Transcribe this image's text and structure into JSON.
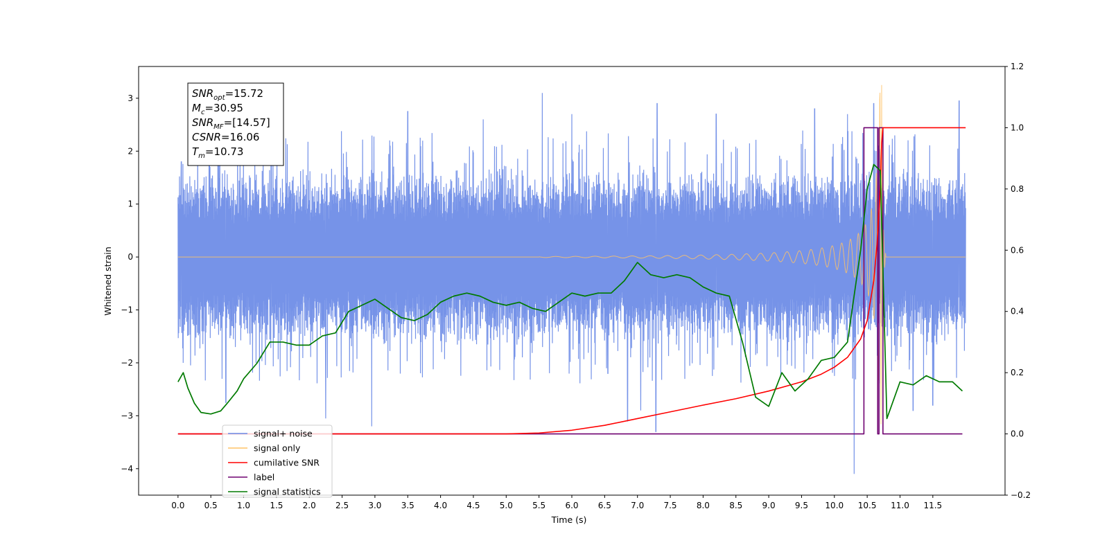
{
  "chart_data": {
    "type": "line",
    "xlabel": "Time (s)",
    "ylabel": "Whitened strain",
    "xlim": [
      -0.6,
      12.6
    ],
    "ylim": [
      -4.5,
      3.6
    ],
    "y2lim": [
      -0.2,
      1.2
    ],
    "x_ticks": [
      "0.0",
      "0.5",
      "1.0",
      "1.5",
      "2.0",
      "2.5",
      "3.0",
      "3.5",
      "4.0",
      "4.5",
      "5.0",
      "5.5",
      "6.0",
      "6.5",
      "7.0",
      "7.5",
      "8.0",
      "8.5",
      "9.0",
      "9.5",
      "10.0",
      "10.5",
      "11.0",
      "11.5"
    ],
    "y_ticks": [
      "3",
      "2",
      "1",
      "0",
      "−1",
      "−2",
      "−3",
      "−4"
    ],
    "y2_ticks": [
      "1.2",
      "1.0",
      "0.8",
      "0.6",
      "0.4",
      "0.2",
      "0.0",
      "−0.2"
    ],
    "info_box": [
      {
        "base": "SNR",
        "sub": "opt",
        "rest": "=15.72"
      },
      {
        "base": "M",
        "sub": "c",
        "rest": "=30.95"
      },
      {
        "base": "SNR",
        "sub": "MF",
        "rest": "=[14.57]"
      },
      {
        "base": "CSNR",
        "sub": "",
        "rest": "=16.06"
      },
      {
        "base": "T",
        "sub": "m",
        "rest": "=10.73"
      }
    ],
    "legend_position": "lower-left",
    "legend": [
      {
        "label": "signal+ noise",
        "color": "#6a8ae6"
      },
      {
        "label": "signal only",
        "color": "#ffc266"
      },
      {
        "label": "cumilative SNR",
        "color": "#ff0000"
      },
      {
        "label": "label",
        "color": "#6e0070"
      },
      {
        "label": "signal statistics",
        "color": "#007a00"
      }
    ],
    "series": [
      {
        "name": "signal+ noise",
        "axis": "left",
        "color": "#6a8ae6",
        "generated": true,
        "x_range": [
          0.0,
          12.0
        ],
        "envelope_upper": 1.7,
        "envelope_lower": -1.7,
        "spikes": [
          [
            0.05,
            1.8
          ],
          [
            0.08,
            -2.0
          ],
          [
            0.3,
            2.4
          ],
          [
            0.73,
            -2.75
          ],
          [
            1.42,
            2.8
          ],
          [
            2.25,
            -3.05
          ],
          [
            2.95,
            -3.2
          ],
          [
            3.5,
            2.75
          ],
          [
            4.65,
            2.6
          ],
          [
            5.55,
            3.1
          ],
          [
            6.0,
            2.7
          ],
          [
            6.55,
            -2.2
          ],
          [
            6.85,
            -3.1
          ],
          [
            7.05,
            -2.9
          ],
          [
            7.3,
            2.9
          ],
          [
            7.28,
            -3.3
          ],
          [
            8.2,
            2.7
          ],
          [
            9.7,
            2.8
          ],
          [
            10.2,
            2.7
          ],
          [
            10.3,
            -4.1
          ],
          [
            10.6,
            2.9
          ],
          [
            11.2,
            -2.9
          ],
          [
            11.5,
            -2.8
          ],
          [
            11.9,
            2.95
          ]
        ]
      },
      {
        "name": "signal only",
        "axis": "left",
        "color": "#ffc266",
        "generated": true,
        "merger_time": 10.72,
        "peak": 3.25
      },
      {
        "name": "cumilative SNR",
        "axis": "right",
        "color": "#ff0000",
        "x": [
          0.0,
          5.0,
          5.5,
          6.0,
          6.5,
          7.0,
          7.5,
          8.0,
          8.5,
          9.0,
          9.5,
          9.8,
          10.0,
          10.2,
          10.4,
          10.5,
          10.6,
          10.65,
          10.7,
          10.72,
          10.74,
          12.0
        ],
        "y": [
          0.0,
          0.0,
          0.003,
          0.012,
          0.028,
          0.05,
          0.072,
          0.094,
          0.115,
          0.14,
          0.17,
          0.195,
          0.218,
          0.25,
          0.31,
          0.37,
          0.5,
          0.62,
          0.8,
          0.95,
          1.0,
          1.0
        ]
      },
      {
        "name": "label",
        "axis": "right",
        "color": "#6e0070",
        "x": [
          0.0,
          10.45,
          10.45,
          10.66,
          10.66,
          10.68,
          10.68,
          10.74,
          10.74,
          11.95
        ],
        "y": [
          0.0,
          0.0,
          1.0,
          1.0,
          0.0,
          0.0,
          1.0,
          1.0,
          0.0,
          0.0
        ]
      },
      {
        "name": "signal statistics",
        "axis": "right",
        "color": "#007a00",
        "x": [
          0.0,
          0.08,
          0.15,
          0.25,
          0.35,
          0.5,
          0.65,
          0.75,
          0.9,
          1.0,
          1.2,
          1.4,
          1.6,
          1.8,
          2.0,
          2.2,
          2.4,
          2.6,
          2.8,
          3.0,
          3.2,
          3.4,
          3.6,
          3.8,
          4.0,
          4.2,
          4.4,
          4.6,
          4.8,
          5.0,
          5.2,
          5.4,
          5.6,
          5.8,
          6.0,
          6.2,
          6.4,
          6.6,
          6.8,
          7.0,
          7.2,
          7.4,
          7.6,
          7.8,
          8.0,
          8.2,
          8.4,
          8.6,
          8.8,
          9.0,
          9.2,
          9.4,
          9.6,
          9.8,
          10.0,
          10.2,
          10.4,
          10.5,
          10.6,
          10.7,
          10.8,
          11.0,
          11.2,
          11.4,
          11.6,
          11.8,
          11.95
        ],
        "y": [
          0.17,
          0.2,
          0.15,
          0.1,
          0.07,
          0.065,
          0.075,
          0.1,
          0.14,
          0.18,
          0.23,
          0.3,
          0.3,
          0.29,
          0.29,
          0.32,
          0.33,
          0.4,
          0.42,
          0.44,
          0.41,
          0.38,
          0.37,
          0.39,
          0.43,
          0.45,
          0.46,
          0.45,
          0.43,
          0.42,
          0.43,
          0.41,
          0.4,
          0.43,
          0.46,
          0.45,
          0.46,
          0.46,
          0.5,
          0.56,
          0.52,
          0.51,
          0.52,
          0.51,
          0.48,
          0.46,
          0.45,
          0.3,
          0.12,
          0.09,
          0.2,
          0.14,
          0.18,
          0.24,
          0.25,
          0.3,
          0.6,
          0.8,
          0.88,
          0.86,
          0.05,
          0.17,
          0.16,
          0.19,
          0.17,
          0.17,
          0.14
        ]
      }
    ]
  }
}
